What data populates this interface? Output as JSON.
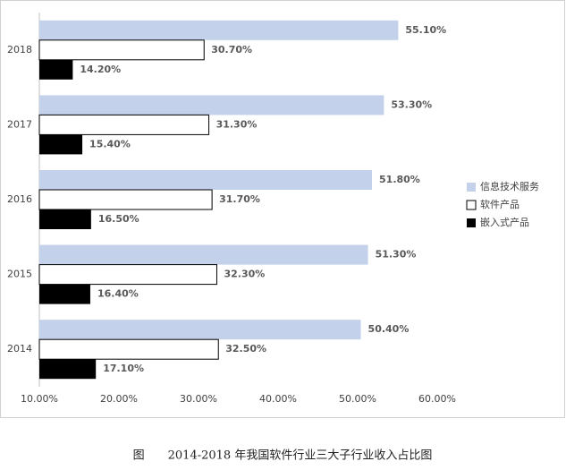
{
  "chart_data": {
    "type": "bar",
    "orientation": "horizontal",
    "caption": "图　　2014-2018 年我国软件行业三大子行业收入占比图",
    "categories": [
      "2014",
      "2015",
      "2016",
      "2017",
      "2018"
    ],
    "series": [
      {
        "name": "信息技术服务",
        "color": "#c3d2ea",
        "values": [
          50.4,
          51.3,
          51.8,
          53.3,
          55.1
        ],
        "value_labels": [
          "50.40%",
          "51.30%",
          "51.80%",
          "53.30%",
          "55.10%"
        ]
      },
      {
        "name": "软件产品",
        "color": "#ffffff",
        "values": [
          32.5,
          32.3,
          31.7,
          31.3,
          30.7
        ],
        "value_labels": [
          "32.50%",
          "32.30%",
          "31.70%",
          "31.30%",
          "30.70%"
        ]
      },
      {
        "name": "嵌入式产品",
        "color": "#000000",
        "values": [
          17.1,
          16.4,
          16.5,
          15.4,
          14.2
        ],
        "value_labels": [
          "17.10%",
          "16.40%",
          "16.50%",
          "15.40%",
          "14.20%"
        ]
      }
    ],
    "xlim": [
      10,
      60
    ],
    "xticks": [
      {
        "value": 10,
        "label": "10.00%"
      },
      {
        "value": 20,
        "label": "20.00%"
      },
      {
        "value": 30,
        "label": "30.00%"
      },
      {
        "value": 40,
        "label": "40.00%"
      },
      {
        "value": 50,
        "label": "50.00%"
      },
      {
        "value": 60,
        "label": "60.00%"
      }
    ],
    "grid": false,
    "legend": "right"
  }
}
